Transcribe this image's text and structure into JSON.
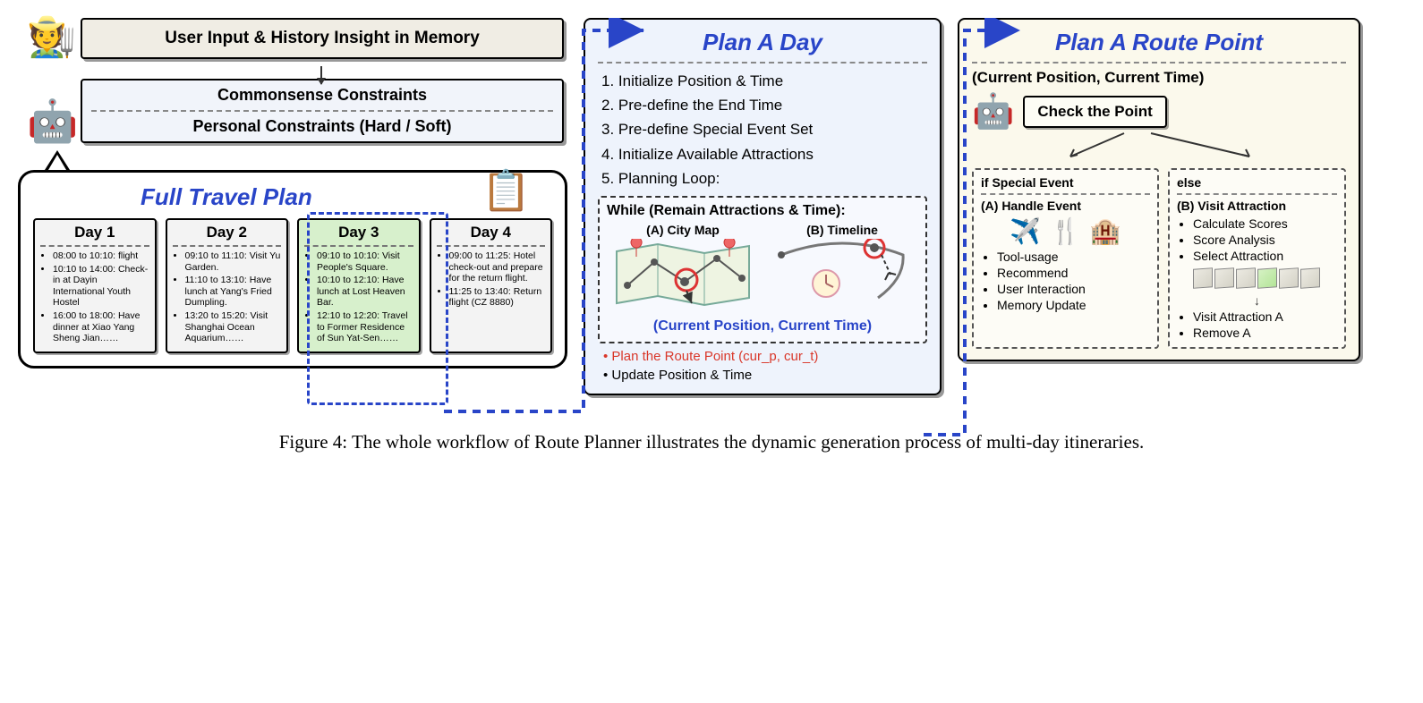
{
  "colors": {
    "accent": "#2945c8",
    "highlight_red": "#d9372a",
    "bg_mid": "#eef3fc",
    "bg_right": "#fbf9ec",
    "day_green": "#d7f0cc"
  },
  "top": {
    "user_input": "User Input & History Insight in Memory",
    "commonsense": "Commonsense Constraints",
    "personal": "Personal Constraints (Hard / Soft)"
  },
  "full_plan": {
    "title": "Full Travel Plan",
    "highlighted_day_index": 2,
    "days": [
      {
        "label": "Day 1",
        "items": [
          "08:00 to 10:10: flight",
          "10:10 to 14:00: Check-in at Dayin International Youth Hostel",
          "16:00 to 18:00: Have dinner at Xiao Yang Sheng Jian……"
        ]
      },
      {
        "label": "Day 2",
        "items": [
          "09:10 to 11:10: Visit Yu Garden.",
          "11:10 to 13:10: Have lunch at Yang's Fried Dumpling.",
          "13:20 to 15:20: Visit Shanghai Ocean Aquarium……"
        ]
      },
      {
        "label": "Day 3",
        "items": [
          "09:10 to 10:10: Visit People's Square.",
          "10:10 to 12:10: Have lunch at Lost Heaven Bar.",
          "12:10 to 12:20: Travel to Former Residence of Sun Yat-Sen……"
        ]
      },
      {
        "label": "Day 4",
        "items": [
          "09:00 to 11:25: Hotel check-out and prepare for the return flight.",
          "11:25 to 13:40: Return flight (CZ 8880)"
        ]
      }
    ]
  },
  "plan_day": {
    "title": "Plan A Day",
    "steps": [
      "1. Initialize Position & Time",
      "2. Pre-define the End Time",
      "3. Pre-define Special Event Set",
      "4. Initialize Available Attractions",
      "5. Planning Loop:"
    ],
    "while_title": "While (Remain Attractions & Time):",
    "a_label": "(A) City Map",
    "b_label": "(B) Timeline",
    "cur_label": "(Current Position, Current Time)",
    "route_point": "Plan the Route Point (cur_p, cur_t)",
    "update": "Update Position & Time"
  },
  "route_point": {
    "title": "Plan A Route Point",
    "sub": "(Current Position, Current Time)",
    "check": "Check the Point",
    "if_head": "if Special Event",
    "else_head": "else",
    "handle_head": "(A) Handle Event",
    "visit_head": "(B) Visit Attraction",
    "handle_items": [
      "Tool-usage",
      "Recommend",
      "User Interaction",
      "Memory Update"
    ],
    "visit_top": [
      "Calculate Scores",
      "Score Analysis",
      "Select Attraction"
    ],
    "visit_bottom": [
      "Visit Attraction A",
      "Remove A"
    ]
  },
  "caption": "Figure 4: The whole workflow of Route Planner illustrates the dynamic generation process of multi-day itineraries."
}
